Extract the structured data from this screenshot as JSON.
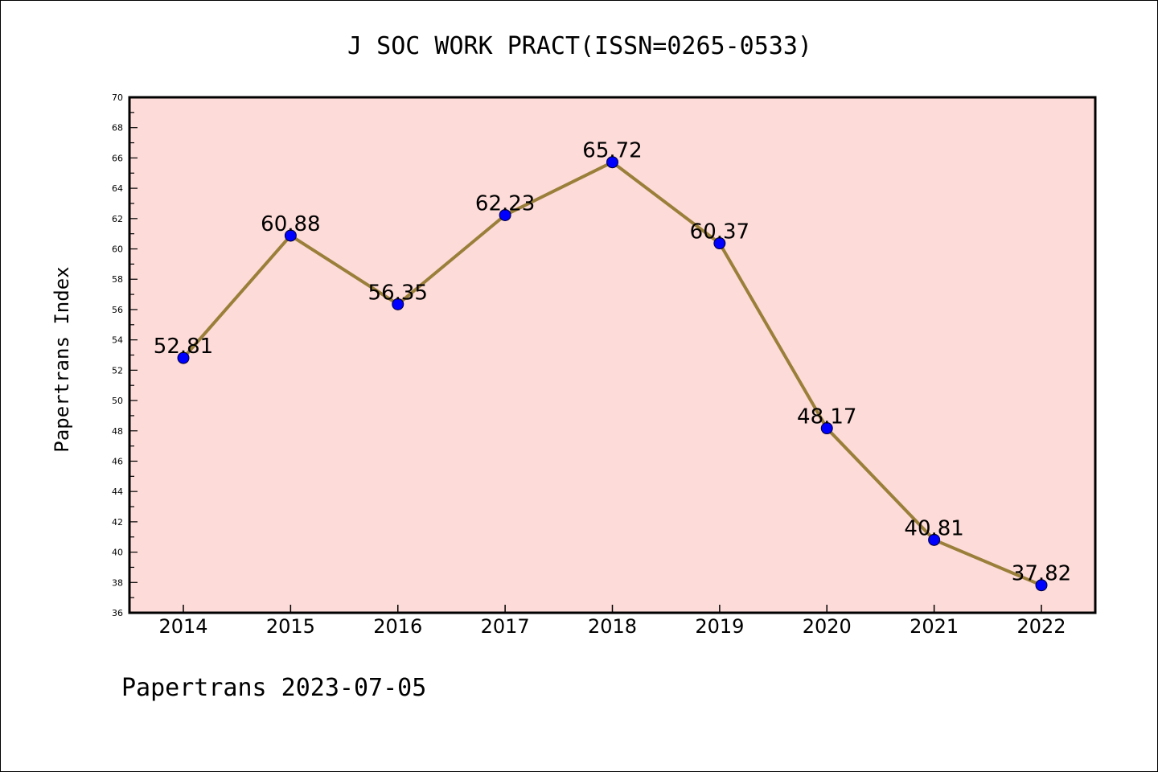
{
  "chart_data": {
    "type": "line",
    "title": "J SOC WORK PRACT(ISSN=0265-0533)",
    "ylabel": "Papertrans Index",
    "xlabel": "",
    "footer": "Papertrans 2023-07-05",
    "categories": [
      "2014",
      "2015",
      "2016",
      "2017",
      "2018",
      "2019",
      "2020",
      "2021",
      "2022"
    ],
    "series": [
      {
        "values": [
          52.81,
          60.88,
          56.35,
          62.23,
          65.72,
          60.37,
          48.17,
          40.81,
          37.82
        ],
        "labels": [
          "52.81",
          "60.88",
          "56.35",
          "62.23",
          "65.72",
          "60.37",
          "48.17",
          "40.81",
          "37.82"
        ]
      }
    ],
    "ylim": [
      36,
      70
    ],
    "ytick_step": 2,
    "grid": false,
    "colors": {
      "plot_background": "#fddbd8",
      "line": "#9a7f3a",
      "marker": "#0000ff"
    }
  }
}
